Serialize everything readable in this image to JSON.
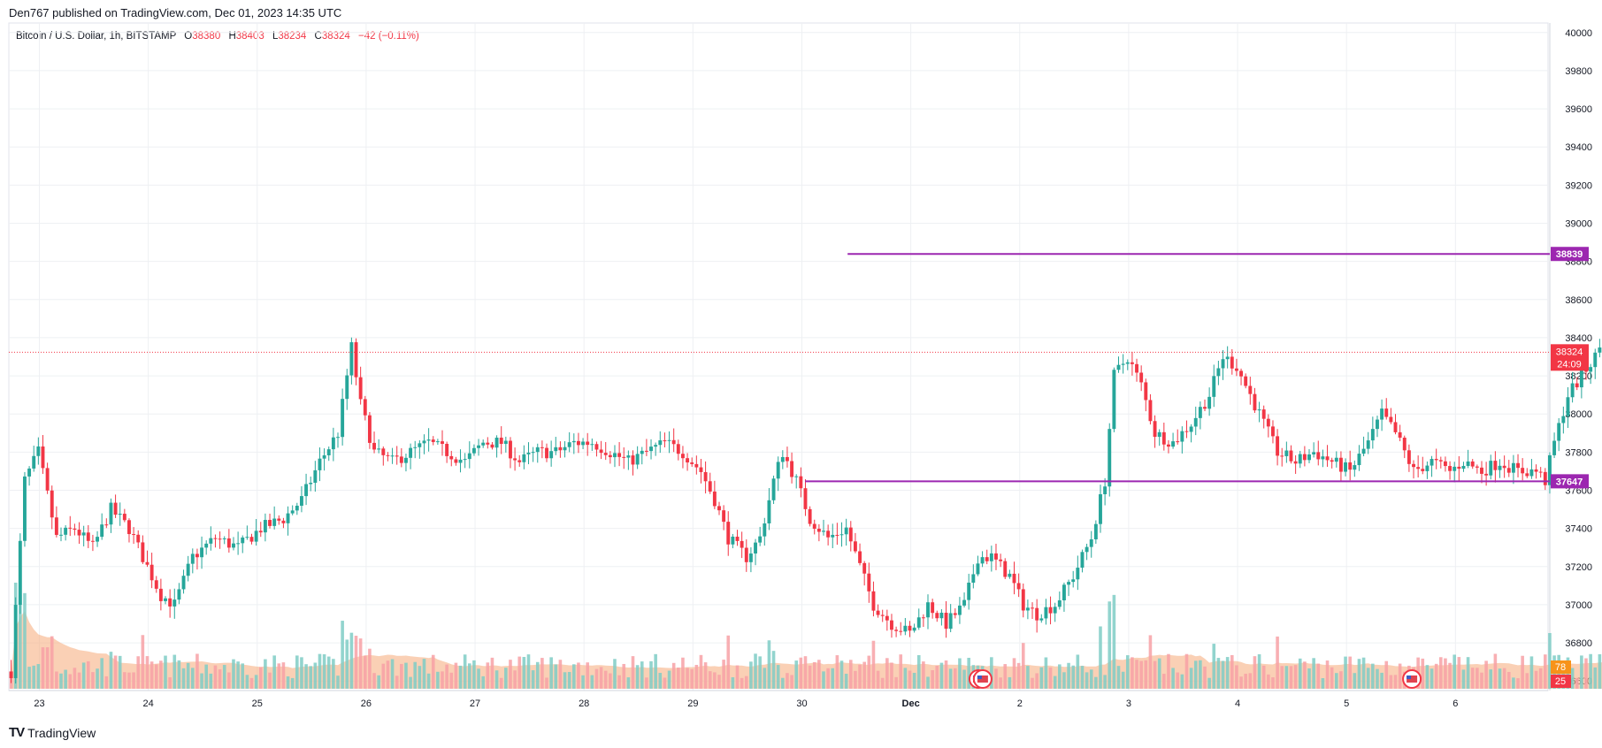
{
  "header": {
    "published": "Den767 published on TradingView.com, Dec 01, 2023 14:35 UTC"
  },
  "legend": {
    "symbol": "Bitcoin / U.S. Dollar, 1h, BITSTAMP",
    "o_label": "O",
    "o_value": "38380",
    "h_label": "H",
    "h_value": "38403",
    "l_label": "L",
    "l_value": "38234",
    "c_label": "C",
    "c_value": "38324",
    "change": "−42 (−0.11%)"
  },
  "footer": {
    "logo": "TV",
    "brand": "TradingView"
  },
  "colors": {
    "up": "#26a69a",
    "down": "#f23645",
    "up_volume": "#7fcdc6",
    "down_volume": "#f7a1a6",
    "level": "#9c27b0",
    "volume_ma": "#f6b083",
    "grid": "#eef0f3",
    "text": "#131722"
  },
  "chart_data": {
    "type": "candlestick",
    "symbol": "Bitcoin / U.S. Dollar",
    "interval": "1h",
    "exchange": "BITSTAMP",
    "ylim": [
      36550,
      40050
    ],
    "y_ticks": [
      36600,
      36800,
      37000,
      37200,
      37400,
      37600,
      37800,
      38000,
      38200,
      38400,
      38600,
      38800,
      39000,
      39200,
      39400,
      39600,
      39800,
      40000
    ],
    "x_ticks": [
      {
        "label": "23",
        "day": 0
      },
      {
        "label": "24",
        "day": 1
      },
      {
        "label": "25",
        "day": 2
      },
      {
        "label": "26",
        "day": 3
      },
      {
        "label": "27",
        "day": 4
      },
      {
        "label": "28",
        "day": 5
      },
      {
        "label": "29",
        "day": 6
      },
      {
        "label": "30",
        "day": 7
      },
      {
        "label": "Dec",
        "day": 8
      },
      {
        "label": "2",
        "day": 9
      },
      {
        "label": "3",
        "day": 10
      },
      {
        "label": "4",
        "day": 11
      },
      {
        "label": "5",
        "day": 12
      },
      {
        "label": "6",
        "day": 13
      }
    ],
    "x_start_day": -0.28,
    "x_end_day": 13.85,
    "last_price": 38324,
    "last_price_label": "38324",
    "countdown": "24:09",
    "volume_label_1": "78",
    "volume_label_2": "25",
    "levels": [
      {
        "price": 38839,
        "label": "38839",
        "from_day": 7.42
      },
      {
        "price": 37647,
        "label": "37647",
        "from_day": 7.03
      }
    ],
    "path": [
      [
        0,
        36650
      ],
      [
        3,
        37650
      ],
      [
        6,
        37800
      ],
      [
        10,
        37350
      ],
      [
        14,
        37400
      ],
      [
        18,
        37300
      ],
      [
        22,
        37500
      ],
      [
        26,
        37400
      ],
      [
        30,
        37200
      ],
      [
        33,
        37050
      ],
      [
        36,
        37000
      ],
      [
        40,
        37250
      ],
      [
        45,
        37350
      ],
      [
        50,
        37300
      ],
      [
        55,
        37400
      ],
      [
        60,
        37450
      ],
      [
        64,
        37550
      ],
      [
        68,
        37750
      ],
      [
        72,
        37900
      ],
      [
        75,
        38350
      ],
      [
        77,
        38050
      ],
      [
        80,
        37800
      ],
      [
        84,
        37750
      ],
      [
        88,
        37800
      ],
      [
        92,
        37850
      ],
      [
        96,
        37800
      ],
      [
        100,
        37750
      ],
      [
        104,
        37850
      ],
      [
        108,
        37850
      ],
      [
        112,
        37750
      ],
      [
        116,
        37800
      ],
      [
        120,
        37800
      ],
      [
        124,
        37850
      ],
      [
        128,
        37850
      ],
      [
        132,
        37800
      ],
      [
        136,
        37750
      ],
      [
        140,
        37800
      ],
      [
        144,
        37850
      ],
      [
        148,
        37800
      ],
      [
        152,
        37700
      ],
      [
        155,
        37550
      ],
      [
        158,
        37350
      ],
      [
        162,
        37250
      ],
      [
        165,
        37350
      ],
      [
        168,
        37650
      ],
      [
        170,
        37800
      ],
      [
        173,
        37650
      ],
      [
        176,
        37450
      ],
      [
        180,
        37350
      ],
      [
        184,
        37400
      ],
      [
        187,
        37200
      ],
      [
        190,
        37000
      ],
      [
        194,
        36900
      ],
      [
        198,
        36850
      ],
      [
        202,
        37000
      ],
      [
        206,
        36900
      ],
      [
        210,
        37000
      ],
      [
        213,
        37250
      ],
      [
        216,
        37250
      ],
      [
        220,
        37150
      ],
      [
        223,
        37000
      ],
      [
        226,
        36950
      ],
      [
        230,
        37000
      ],
      [
        234,
        37150
      ],
      [
        238,
        37350
      ],
      [
        241,
        37650
      ],
      [
        243,
        38200
      ],
      [
        246,
        38300
      ],
      [
        249,
        38150
      ],
      [
        252,
        37900
      ],
      [
        256,
        37850
      ],
      [
        260,
        37950
      ],
      [
        264,
        38100
      ],
      [
        267,
        38300
      ],
      [
        270,
        38250
      ],
      [
        273,
        38100
      ],
      [
        276,
        37950
      ],
      [
        279,
        37800
      ],
      [
        283,
        37750
      ],
      [
        287,
        37800
      ],
      [
        291,
        37750
      ],
      [
        295,
        37700
      ],
      [
        299,
        37850
      ],
      [
        302,
        38000
      ],
      [
        305,
        37900
      ],
      [
        309,
        37700
      ],
      [
        313,
        37750
      ],
      [
        317,
        37700
      ],
      [
        320,
        37750
      ],
      [
        324,
        37700
      ],
      [
        328,
        37750
      ],
      [
        332,
        37700
      ],
      [
        336,
        37700
      ],
      [
        338,
        37650
      ],
      [
        340,
        37850
      ],
      [
        343,
        38100
      ],
      [
        346,
        38200
      ],
      [
        349,
        38300
      ],
      [
        352,
        38450
      ],
      [
        353,
        38700
      ],
      [
        356,
        38600
      ],
      [
        358,
        38400
      ],
      [
        360,
        38380
      ],
      [
        361,
        38324
      ]
    ]
  }
}
